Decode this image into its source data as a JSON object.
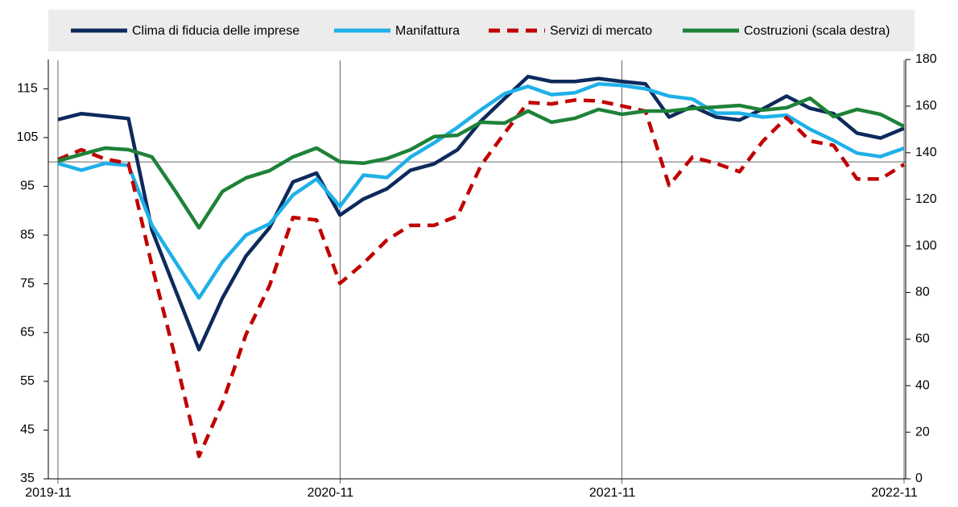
{
  "chart_data": {
    "type": "line",
    "categories": [
      "2019-11",
      null,
      null,
      null,
      null,
      null,
      null,
      null,
      null,
      null,
      null,
      null,
      "2020-11",
      null,
      null,
      null,
      null,
      null,
      null,
      null,
      null,
      null,
      null,
      null,
      "2021-11",
      null,
      null,
      null,
      null,
      null,
      null,
      null,
      null,
      null,
      null,
      null,
      "2022-11"
    ],
    "series": [
      {
        "name": "Clima di fiducia delle imprese",
        "color": "#0d2a5c",
        "dash": false,
        "values": [
          108.7,
          109.9,
          109.4,
          108.9,
          86.0,
          73.7,
          61.5,
          72.1,
          80.7,
          86.5,
          95.9,
          97.7,
          89.1,
          92.4,
          94.5,
          98.3,
          99.6,
          102.5,
          108.4,
          113.0,
          117.5,
          116.5,
          116.5,
          117.1,
          116.5,
          116.0,
          109.2,
          111.4,
          109.2,
          108.6,
          110.9,
          113.5,
          111.0,
          109.9,
          105.9,
          104.9,
          106.9
        ]
      },
      {
        "name": "Manifattura",
        "color": "#1fb0e8",
        "dash": false,
        "values": [
          99.7,
          98.3,
          99.7,
          99.3,
          87.0,
          79.5,
          72.1,
          79.5,
          85.0,
          87.3,
          93.2,
          96.5,
          90.9,
          97.3,
          96.8,
          101.0,
          103.9,
          107.1,
          110.7,
          114.0,
          115.5,
          113.8,
          114.2,
          116.0,
          115.7,
          115.0,
          113.5,
          112.9,
          110.0,
          110.0,
          109.2,
          109.6,
          106.7,
          104.4,
          101.8,
          101.1,
          102.8
        ]
      },
      {
        "name": "Servizi di mercato",
        "color": "#c00000",
        "dash": true,
        "values": [
          100.5,
          102.5,
          100.6,
          99.7,
          78.7,
          59.7,
          39.6,
          50.6,
          64.6,
          74.6,
          88.6,
          88.1,
          75.1,
          79.2,
          84.0,
          87.0,
          87.0,
          88.9,
          99.3,
          105.9,
          112.2,
          111.9,
          112.7,
          112.5,
          111.5,
          110.4,
          95.2,
          101.0,
          99.7,
          98.0,
          104.3,
          109.1,
          104.3,
          103.4,
          96.5,
          96.5,
          99.5
        ]
      },
      {
        "name": "Costruzioni (scala destra)",
        "color": "#1e8238",
        "dash": false,
        "axis": "y2",
        "values": [
          136.5,
          139.3,
          142.0,
          141.3,
          138.2,
          123.4,
          107.8,
          123.4,
          129.2,
          132.3,
          138.2,
          142.0,
          136.1,
          135.5,
          137.5,
          141.3,
          146.9,
          147.5,
          153.1,
          152.7,
          157.9,
          153.1,
          154.8,
          158.6,
          156.5,
          157.9,
          157.9,
          159.0,
          159.6,
          160.3,
          158.3,
          159.3,
          163.4,
          155.5,
          158.6,
          156.5,
          151.3
        ]
      }
    ],
    "ylim": [
      35,
      121
    ],
    "yticks": [
      35,
      45,
      55,
      65,
      75,
      85,
      95,
      105,
      115
    ],
    "y2lim": [
      0,
      180
    ],
    "y2ticks": [
      0,
      20,
      40,
      60,
      80,
      100,
      120,
      140,
      160,
      180
    ],
    "reference_line": 100,
    "legend": "top"
  }
}
